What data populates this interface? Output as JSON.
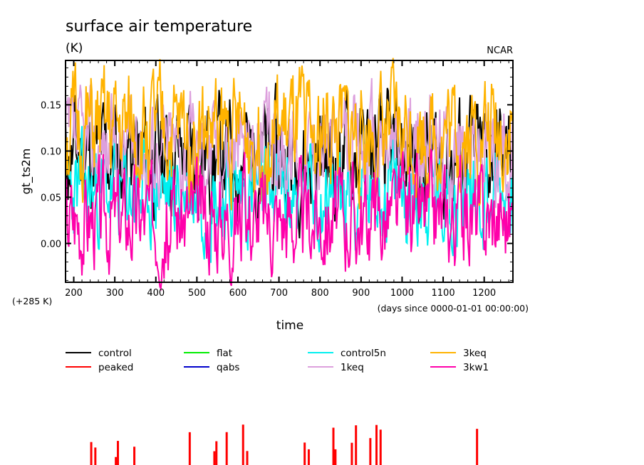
{
  "chart_data": {
    "type": "line",
    "title": "surface air temperature",
    "units": "(K)",
    "credit": "NCAR",
    "ylabel": "gt_ts2m",
    "xlabel": "time",
    "x_units": "(days since 0000-01-01 00:00:00)",
    "y_offset_label": "(+285 K)",
    "xlim": [
      180,
      1270
    ],
    "ylim": [
      -0.042,
      0.198
    ],
    "x_ticks": [
      200,
      300,
      400,
      500,
      600,
      700,
      800,
      900,
      1000,
      1100,
      1200
    ],
    "x_tick_labels": [
      "200",
      "300",
      "400",
      "500",
      "600",
      "700",
      "800",
      "900",
      "1000",
      "1100",
      "1200"
    ],
    "y_ticks": [
      0.0,
      0.05,
      0.1,
      0.15
    ],
    "y_tick_labels": [
      "0.00",
      "0.05",
      "0.10",
      "0.15"
    ],
    "grid": false,
    "legend_position": "bottom",
    "series": [
      {
        "name": "control",
        "color": "#000000",
        "mean": 0.095,
        "amp": 0.045,
        "seed": 11
      },
      {
        "name": "peaked",
        "color": "#ff0000",
        "mean": null,
        "amp": null,
        "seed": 0
      },
      {
        "name": "flat",
        "color": "#00ee00",
        "mean": null,
        "amp": null,
        "seed": 0
      },
      {
        "name": "qabs",
        "color": "#0000cc",
        "mean": null,
        "amp": null,
        "seed": 0
      },
      {
        "name": "control5n",
        "color": "#00f0f0",
        "mean": 0.055,
        "amp": 0.04,
        "seed": 23
      },
      {
        "name": "1keq",
        "color": "#dda0dd",
        "mean": 0.105,
        "amp": 0.04,
        "seed": 37
      },
      {
        "name": "3keq",
        "color": "#ffb300",
        "mean": 0.12,
        "amp": 0.045,
        "seed": 51
      },
      {
        "name": "3kw1",
        "color": "#ff00aa",
        "mean": 0.03,
        "amp": 0.04,
        "seed": 67
      }
    ],
    "legend": [
      [
        "control",
        "flat",
        "control5n",
        "3keq"
      ],
      [
        "peaked",
        "qabs",
        "1keq",
        "3kw1"
      ]
    ],
    "peaked_spikes_x": [
      240,
      250,
      300,
      305,
      345,
      480,
      540,
      545,
      570,
      610,
      620,
      760,
      770,
      830,
      835,
      875,
      885,
      920,
      935,
      945,
      1180
    ]
  }
}
